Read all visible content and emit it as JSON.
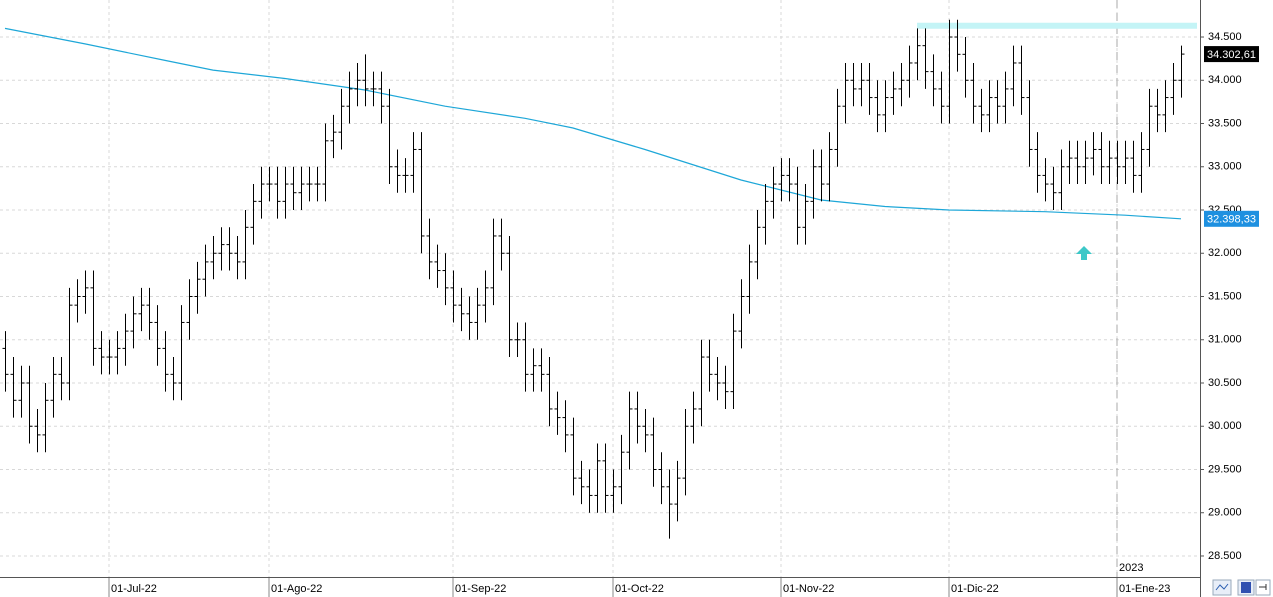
{
  "chart_data": {
    "type": "ohlc",
    "open": [
      30900,
      30600,
      30300,
      30500,
      30000,
      29900,
      30300,
      30600,
      30500,
      31400,
      31500,
      31600,
      30900,
      30800,
      30800,
      30900,
      31100,
      31300,
      31400,
      31200,
      30900,
      30600,
      30500,
      31200,
      31500,
      31700,
      31900,
      32000,
      32100,
      32000,
      31900,
      32300,
      32600,
      32800,
      32800,
      32600,
      32800,
      32700,
      32800,
      32800,
      32800,
      33300,
      33400,
      33700,
      33900,
      34000,
      33900,
      33900,
      33700,
      33000,
      32900,
      32900,
      33200,
      32200,
      31900,
      31800,
      31600,
      31400,
      31300,
      31200,
      31400,
      31600,
      32200,
      32000,
      31000,
      31000,
      30600,
      30700,
      30600,
      30200,
      30100,
      29900,
      29400,
      29300,
      29200,
      29600,
      29200,
      29300,
      29700,
      30200,
      30000,
      29900,
      29500,
      29300,
      29100,
      29400,
      30000,
      30200,
      30800,
      30600,
      30500,
      30400,
      31100,
      31500,
      31900,
      32300,
      32600,
      32800,
      32900,
      32800,
      32300,
      32600,
      33000,
      32800,
      33200,
      33700,
      34000,
      33900,
      34000,
      33800,
      33600,
      33800,
      33900,
      34000,
      34200,
      34400,
      34100,
      33900,
      33700,
      34500,
      34300,
      34000,
      33700,
      33600,
      33800,
      33700,
      33900,
      34200,
      33800,
      33200,
      32900,
      32800,
      32700,
      33000,
      33100,
      33000,
      33100,
      33200,
      33000,
      33100,
      33000,
      33100,
      32900,
      33200,
      33700,
      33600,
      33800,
      34000
    ],
    "high": [
      31100,
      30800,
      30700,
      30700,
      30200,
      30500,
      30800,
      30800,
      31600,
      31700,
      31800,
      31800,
      31100,
      31000,
      31100,
      31300,
      31500,
      31600,
      31600,
      31400,
      31100,
      30800,
      31400,
      31700,
      31900,
      32100,
      32200,
      32300,
      32300,
      32200,
      32500,
      32800,
      33000,
      33000,
      33000,
      33000,
      33000,
      33000,
      33000,
      33000,
      33500,
      33600,
      33900,
      34100,
      34200,
      34300,
      34100,
      34100,
      33900,
      33200,
      33100,
      33400,
      33400,
      32400,
      32100,
      32000,
      31800,
      31600,
      31500,
      31600,
      31800,
      32400,
      32400,
      32200,
      31200,
      31200,
      30900,
      30900,
      30800,
      30400,
      30300,
      30100,
      29600,
      29500,
      29800,
      29800,
      29500,
      29900,
      30400,
      30400,
      30200,
      30100,
      29700,
      29500,
      29600,
      30200,
      30400,
      31000,
      31000,
      30800,
      30700,
      31300,
      31700,
      32100,
      32500,
      32800,
      33000,
      33100,
      33100,
      33000,
      32800,
      33200,
      33200,
      33400,
      33900,
      34200,
      34200,
      34200,
      34200,
      34000,
      34000,
      34100,
      34200,
      34400,
      34600,
      34600,
      34300,
      34100,
      34700,
      34700,
      34500,
      34200,
      33900,
      34000,
      34000,
      34100,
      34400,
      34400,
      34000,
      33400,
      33100,
      33000,
      33200,
      33300,
      33300,
      33300,
      33400,
      33400,
      33300,
      33300,
      33300,
      33300,
      33400,
      33900,
      33900,
      34000,
      34200,
      34400
    ],
    "low": [
      30400,
      30100,
      30100,
      29800,
      29700,
      29700,
      30100,
      30300,
      30300,
      31200,
      31300,
      30700,
      30600,
      30600,
      30600,
      30700,
      30900,
      31100,
      31000,
      30700,
      30400,
      30300,
      30300,
      31000,
      31300,
      31500,
      31700,
      31800,
      31800,
      31700,
      31700,
      32100,
      32400,
      32600,
      32400,
      32400,
      32500,
      32500,
      32600,
      32600,
      32600,
      33100,
      33200,
      33500,
      33700,
      33700,
      33700,
      33500,
      32800,
      32700,
      32700,
      32700,
      32000,
      31700,
      31600,
      31400,
      31200,
      31100,
      31000,
      31000,
      31200,
      31400,
      31800,
      30800,
      30800,
      30400,
      30400,
      30400,
      30000,
      29900,
      29700,
      29200,
      29100,
      29000,
      29000,
      29000,
      29000,
      29100,
      29500,
      29800,
      29700,
      29300,
      29100,
      28700,
      28900,
      29200,
      29800,
      30000,
      30400,
      30300,
      30200,
      30200,
      30900,
      31300,
      31700,
      32100,
      32400,
      32600,
      32600,
      32100,
      32100,
      32400,
      32600,
      32600,
      33000,
      33500,
      33700,
      33700,
      33600,
      33400,
      33400,
      33600,
      33700,
      33800,
      34000,
      33900,
      33700,
      33500,
      33500,
      34100,
      33800,
      33500,
      33400,
      33400,
      33500,
      33500,
      33700,
      33600,
      33000,
      32700,
      32600,
      32500,
      32500,
      32800,
      32800,
      32800,
      32900,
      32800,
      32800,
      32800,
      32800,
      32700,
      32700,
      33000,
      33400,
      33400,
      33600,
      33800
    ],
    "close": [
      30600,
      30300,
      30500,
      30000,
      29900,
      30300,
      30600,
      30500,
      31400,
      31500,
      31600,
      30900,
      30800,
      30800,
      30900,
      31100,
      31300,
      31400,
      31200,
      30900,
      30600,
      30500,
      31200,
      31500,
      31700,
      31900,
      32000,
      32100,
      32000,
      31900,
      32300,
      32600,
      32800,
      32800,
      32600,
      32800,
      32700,
      32800,
      32800,
      32800,
      33300,
      33400,
      33700,
      33900,
      34000,
      33900,
      33900,
      33700,
      33000,
      32900,
      32900,
      33200,
      32200,
      31900,
      31800,
      31600,
      31400,
      31300,
      31200,
      31400,
      31600,
      32200,
      32000,
      31000,
      31000,
      30600,
      30700,
      30600,
      30200,
      30100,
      29900,
      29400,
      29300,
      29200,
      29600,
      29200,
      29300,
      29700,
      30200,
      30000,
      29900,
      29500,
      29300,
      29100,
      29400,
      30000,
      30200,
      30800,
      30600,
      30500,
      30400,
      31100,
      31500,
      31900,
      32300,
      32600,
      32800,
      32900,
      32800,
      32300,
      32600,
      33000,
      32800,
      33200,
      33700,
      34000,
      33900,
      34000,
      33800,
      33600,
      33800,
      33900,
      34000,
      34200,
      34400,
      34100,
      33900,
      33700,
      34500,
      34300,
      34000,
      33700,
      33600,
      33800,
      33700,
      33900,
      34200,
      33800,
      33200,
      32900,
      32800,
      32700,
      33000,
      33100,
      33000,
      33100,
      33200,
      33000,
      33100,
      33000,
      33100,
      32900,
      33200,
      33700,
      33600,
      33800,
      34000,
      34302.61
    ],
    "close_label": "34.302,61",
    "ma": {
      "x": [
        0,
        10,
        20,
        26,
        35,
        45,
        55,
        65,
        71,
        80,
        92,
        102,
        110,
        118,
        130,
        140,
        147
      ],
      "values": [
        34600,
        34420,
        34230,
        34118,
        34020,
        33887,
        33700,
        33560,
        33448,
        33200,
        32847,
        32616,
        32540,
        32500,
        32480,
        32440,
        32398.33
      ],
      "color": "#1ea7d8",
      "label": "32.398,33"
    },
    "resistance": {
      "value": 34630,
      "x": [
        114,
        149
      ],
      "color": "#c4f4f6"
    },
    "color": "#000000",
    "xlim": [
      -0.625,
      149.375
    ],
    "xticks": [
      {
        "value": 13,
        "label": "01-Jul-22"
      },
      {
        "value": 33,
        "label": "01-Ago-22"
      },
      {
        "value": 56,
        "label": "01-Sep-22"
      },
      {
        "value": 76,
        "label": "01-Oct-22"
      },
      {
        "value": 97,
        "label": "01-Nov-22"
      },
      {
        "value": 118,
        "label": "01-Dic-22"
      },
      {
        "value": 139,
        "label": "01-Ene-23"
      }
    ],
    "year_label": "2023",
    "ylim": [
      28257,
      34928
    ],
    "yticks": [
      {
        "value": 28500,
        "label": "28.500"
      },
      {
        "value": 29000,
        "label": "29.000"
      },
      {
        "value": 29500,
        "label": "29.500"
      },
      {
        "value": 30000,
        "label": "30.000"
      },
      {
        "value": 30500,
        "label": "30.500"
      },
      {
        "value": 31000,
        "label": "31.000"
      },
      {
        "value": 31500,
        "label": "31.500"
      },
      {
        "value": 32000,
        "label": "32.000"
      },
      {
        "value": 32500,
        "label": "32.500"
      },
      {
        "value": 33000,
        "label": "33.000"
      },
      {
        "value": 33500,
        "label": "33.500"
      },
      {
        "value": 34000,
        "label": "34.000"
      },
      {
        "value": 34500,
        "label": "34.500"
      }
    ],
    "grid": true
  }
}
